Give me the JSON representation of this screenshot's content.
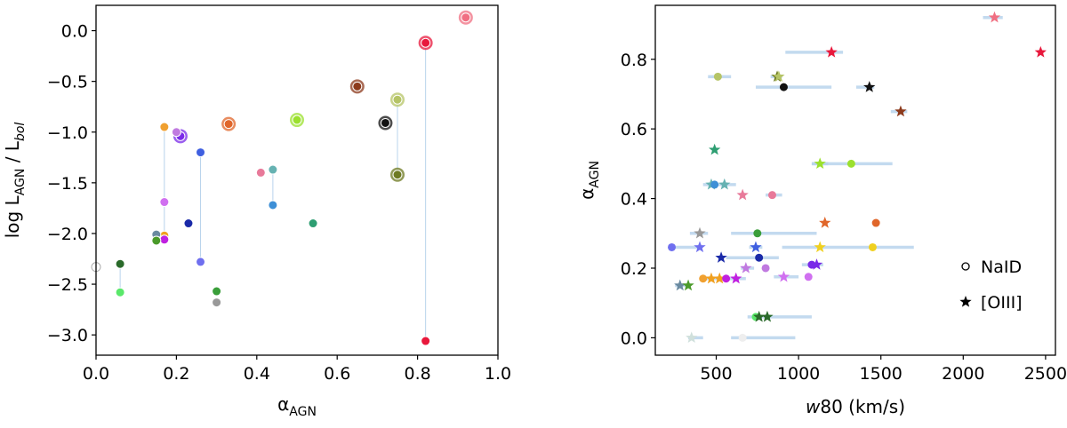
{
  "chart_data": [
    {
      "type": "scatter",
      "title": "",
      "xlabel_main": "α",
      "xlabel_sub": "AGN",
      "ylabel": "log L_AGN / L_bol",
      "xlim": [
        0.0,
        1.0
      ],
      "ylim": [
        -3.2,
        0.25
      ],
      "xticks": [
        0.0,
        0.2,
        0.4,
        0.6,
        0.8,
        1.0
      ],
      "xtick_labels": [
        "0.0",
        "0.2",
        "0.4",
        "0.6",
        "0.8",
        "1.0"
      ],
      "yticks": [
        0.0,
        -0.5,
        -1.0,
        -1.5,
        -2.0,
        -2.5,
        -3.0
      ],
      "ytick_labels": [
        "0.0",
        "−0.5",
        "−1.0",
        "−1.5",
        "−2.0",
        "−2.5",
        "−3.0"
      ],
      "connectors": [
        {
          "x": 0.17,
          "y1": -0.95,
          "y2": -2.02
        },
        {
          "x": 0.26,
          "y1": -1.2,
          "y2": -2.28
        },
        {
          "x": 0.44,
          "y1": -1.37,
          "y2": -1.72
        },
        {
          "x": 0.06,
          "y1": -2.3,
          "y2": -2.58
        },
        {
          "x": 0.75,
          "y1": -0.68,
          "y2": -1.42
        },
        {
          "x": 0.82,
          "y1": -0.12,
          "y2": -3.06
        }
      ],
      "points": [
        {
          "x": 0.92,
          "y": 0.13,
          "color": "#f06f82",
          "big": true
        },
        {
          "x": 0.82,
          "y": -0.12,
          "color": "#e8183c",
          "big": true
        },
        {
          "x": 0.82,
          "y": -3.06,
          "color": "#e8183c",
          "big": false
        },
        {
          "x": 0.75,
          "y": -0.68,
          "color": "#b5c466",
          "big": true
        },
        {
          "x": 0.75,
          "y": -1.42,
          "color": "#6e7a22",
          "big": true
        },
        {
          "x": 0.72,
          "y": -0.91,
          "color": "#111111",
          "big": true
        },
        {
          "x": 0.65,
          "y": -0.55,
          "color": "#8c3a1c",
          "big": true
        },
        {
          "x": 0.54,
          "y": -1.9,
          "color": "#2e9e72",
          "big": false
        },
        {
          "x": 0.5,
          "y": -0.88,
          "color": "#9be02e",
          "big": true
        },
        {
          "x": 0.44,
          "y": -1.37,
          "color": "#66b2b2",
          "big": false
        },
        {
          "x": 0.44,
          "y": -1.72,
          "color": "#3d8fd6",
          "big": false
        },
        {
          "x": 0.41,
          "y": -1.4,
          "color": "#e87a9a",
          "big": false
        },
        {
          "x": 0.33,
          "y": -0.92,
          "color": "#e0662a",
          "big": true
        },
        {
          "x": 0.3,
          "y": -2.57,
          "color": "#3a9e3a",
          "big": false
        },
        {
          "x": 0.3,
          "y": -2.68,
          "color": "#999999",
          "big": false
        },
        {
          "x": 0.26,
          "y": -1.2,
          "color": "#3f5fe0",
          "big": false
        },
        {
          "x": 0.26,
          "y": -2.28,
          "color": "#6f6fef",
          "big": false
        },
        {
          "x": 0.23,
          "y": -1.9,
          "color": "#1a2aa8",
          "big": false
        },
        {
          "x": 0.21,
          "y": -1.04,
          "color": "#7a2ae8",
          "big": true
        },
        {
          "x": 0.2,
          "y": -1.0,
          "color": "#c07ae0",
          "big": false
        },
        {
          "x": 0.17,
          "y": -0.95,
          "color": "#f0a030",
          "big": false
        },
        {
          "x": 0.17,
          "y": -1.69,
          "color": "#d070f0",
          "big": false
        },
        {
          "x": 0.17,
          "y": -2.02,
          "color": "#f0a020",
          "big": false
        },
        {
          "x": 0.17,
          "y": -2.06,
          "color": "#c020e0",
          "big": false
        },
        {
          "x": 0.15,
          "y": -2.01,
          "color": "#6a8aa0",
          "big": false
        },
        {
          "x": 0.15,
          "y": -2.07,
          "color": "#4a9a2a",
          "big": false
        },
        {
          "x": 0.06,
          "y": -2.3,
          "color": "#2a6a2a",
          "big": false
        },
        {
          "x": 0.06,
          "y": -2.58,
          "color": "#5ae86a",
          "big": false
        },
        {
          "x": 0.0,
          "y": -2.33,
          "color": "#ffffff",
          "big": false
        }
      ]
    },
    {
      "type": "scatter",
      "title": "",
      "xlabel_main": "w",
      "xlabel_rest": "80 (km/s)",
      "ylabel_main": "α",
      "ylabel_sub": "AGN",
      "xlim": [
        130,
        2560
      ],
      "ylim": [
        -0.05,
        0.955
      ],
      "xticks": [
        500,
        1000,
        1500,
        2000,
        2500
      ],
      "xtick_labels": [
        "500",
        "1000",
        "1500",
        "2000",
        "2500"
      ],
      "yticks": [
        0.0,
        0.2,
        0.4,
        0.6,
        0.8
      ],
      "ytick_labels": [
        "0.0",
        "0.2",
        "0.4",
        "0.6",
        "0.8"
      ],
      "legend": {
        "position": "lower right",
        "entries": [
          {
            "label": "NaID",
            "marker": "circle"
          },
          {
            "label": "[OIII]",
            "marker": "star"
          }
        ]
      },
      "points": [
        {
          "x": 2190,
          "y": 0.92,
          "color": "#f06f82",
          "marker": "star",
          "xerr": [
            2120,
            2240
          ]
        },
        {
          "x": 2470,
          "y": 0.82,
          "color": "#e8183c",
          "marker": "star",
          "xerr": null
        },
        {
          "x": 1200,
          "y": 0.82,
          "color": "#e8183c",
          "marker": "star",
          "xerr": [
            920,
            1270
          ]
        },
        {
          "x": 510,
          "y": 0.75,
          "color": "#b5c466",
          "marker": "circle",
          "xerr": [
            450,
            590
          ]
        },
        {
          "x": 870,
          "y": 0.75,
          "color": "#6e7a22",
          "marker": "star",
          "xerr": [
            830,
            900
          ]
        },
        {
          "x": 880,
          "y": 0.75,
          "color": "#b5c466",
          "marker": "star",
          "xerr": null
        },
        {
          "x": 910,
          "y": 0.72,
          "color": "#111111",
          "marker": "circle",
          "xerr": [
            740,
            1200
          ]
        },
        {
          "x": 1430,
          "y": 0.72,
          "color": "#111111",
          "marker": "star",
          "xerr": [
            1350,
            1460
          ]
        },
        {
          "x": 1620,
          "y": 0.65,
          "color": "#8c3a1c",
          "marker": "star",
          "xerr": [
            1560,
            1660
          ]
        },
        {
          "x": 490,
          "y": 0.54,
          "color": "#2e9e72",
          "marker": "star",
          "xerr": null
        },
        {
          "x": 1130,
          "y": 0.5,
          "color": "#9be02e",
          "marker": "star",
          "xerr": [
            1080,
            1180
          ]
        },
        {
          "x": 1320,
          "y": 0.5,
          "color": "#9be02e",
          "marker": "circle",
          "xerr": [
            1080,
            1570
          ]
        },
        {
          "x": 470,
          "y": 0.44,
          "color": "#66b2b2",
          "marker": "star",
          "xerr": [
            420,
            620
          ]
        },
        {
          "x": 490,
          "y": 0.44,
          "color": "#3d8fd6",
          "marker": "circle",
          "xerr": null
        },
        {
          "x": 550,
          "y": 0.44,
          "color": "#66b2b2",
          "marker": "star",
          "xerr": null
        },
        {
          "x": 660,
          "y": 0.41,
          "color": "#e87a9a",
          "marker": "star",
          "xerr": null
        },
        {
          "x": 840,
          "y": 0.41,
          "color": "#e87a9a",
          "marker": "circle",
          "xerr": [
            800,
            900
          ]
        },
        {
          "x": 1160,
          "y": 0.33,
          "color": "#e0662a",
          "marker": "star",
          "xerr": null
        },
        {
          "x": 1470,
          "y": 0.33,
          "color": "#e0662a",
          "marker": "circle",
          "xerr": null
        },
        {
          "x": 400,
          "y": 0.3,
          "color": "#999999",
          "marker": "star",
          "xerr": [
            340,
            450
          ]
        },
        {
          "x": 750,
          "y": 0.3,
          "color": "#3a9e3a",
          "marker": "circle",
          "xerr": [
            590,
            1110
          ]
        },
        {
          "x": 230,
          "y": 0.26,
          "color": "#6f6fef",
          "marker": "circle",
          "xerr": [
            220,
            390
          ]
        },
        {
          "x": 400,
          "y": 0.26,
          "color": "#6f6fef",
          "marker": "star",
          "xerr": null
        },
        {
          "x": 740,
          "y": 0.26,
          "color": "#3f5fe0",
          "marker": "star",
          "xerr": [
            700,
            780
          ]
        },
        {
          "x": 1130,
          "y": 0.26,
          "color": "#f0d020",
          "marker": "star",
          "xerr": [
            900,
            1700
          ]
        },
        {
          "x": 1450,
          "y": 0.26,
          "color": "#f0d020",
          "marker": "circle",
          "xerr": null
        },
        {
          "x": 530,
          "y": 0.23,
          "color": "#1a2aa8",
          "marker": "star",
          "xerr": null
        },
        {
          "x": 760,
          "y": 0.23,
          "color": "#1a2aa8",
          "marker": "circle",
          "xerr": [
            560,
            880
          ]
        },
        {
          "x": 1080,
          "y": 0.21,
          "color": "#7a2ae8",
          "marker": "circle",
          "xerr": [
            1020,
            1150
          ]
        },
        {
          "x": 1110,
          "y": 0.21,
          "color": "#7a2ae8",
          "marker": "star",
          "xerr": null
        },
        {
          "x": 680,
          "y": 0.2,
          "color": "#c07ae0",
          "marker": "star",
          "xerr": [
            650,
            730
          ]
        },
        {
          "x": 800,
          "y": 0.2,
          "color": "#c07ae0",
          "marker": "circle",
          "xerr": null
        },
        {
          "x": 910,
          "y": 0.175,
          "color": "#d070f0",
          "marker": "star",
          "xerr": [
            850,
            1000
          ]
        },
        {
          "x": 1060,
          "y": 0.175,
          "color": "#d070f0",
          "marker": "circle",
          "xerr": null
        },
        {
          "x": 420,
          "y": 0.17,
          "color": "#f0a030",
          "marker": "circle",
          "xerr": null
        },
        {
          "x": 470,
          "y": 0.17,
          "color": "#f0a020",
          "marker": "star",
          "xerr": [
            430,
            680
          ]
        },
        {
          "x": 520,
          "y": 0.17,
          "color": "#f0a020",
          "marker": "star",
          "xerr": null
        },
        {
          "x": 560,
          "y": 0.17,
          "color": "#c020e0",
          "marker": "circle",
          "xerr": null
        },
        {
          "x": 620,
          "y": 0.17,
          "color": "#c020e0",
          "marker": "star",
          "xerr": null
        },
        {
          "x": 280,
          "y": 0.15,
          "color": "#6a8aa0",
          "marker": "star",
          "xerr": [
            250,
            330
          ]
        },
        {
          "x": 330,
          "y": 0.15,
          "color": "#4a9a2a",
          "marker": "star",
          "xerr": null
        },
        {
          "x": 740,
          "y": 0.06,
          "color": "#5ae86a",
          "marker": "circle",
          "xerr": [
            690,
            1080
          ]
        },
        {
          "x": 760,
          "y": 0.06,
          "color": "#2a6a2a",
          "marker": "star",
          "xerr": null
        },
        {
          "x": 810,
          "y": 0.06,
          "color": "#2a6a2a",
          "marker": "star",
          "xerr": null
        },
        {
          "x": 350,
          "y": 0.0,
          "color": "#d0e0dc",
          "marker": "star",
          "xerr": [
            330,
            420
          ]
        },
        {
          "x": 660,
          "y": 0.0,
          "color": "#eeeeee",
          "marker": "circle",
          "xerr": [
            590,
            980
          ]
        }
      ]
    }
  ]
}
